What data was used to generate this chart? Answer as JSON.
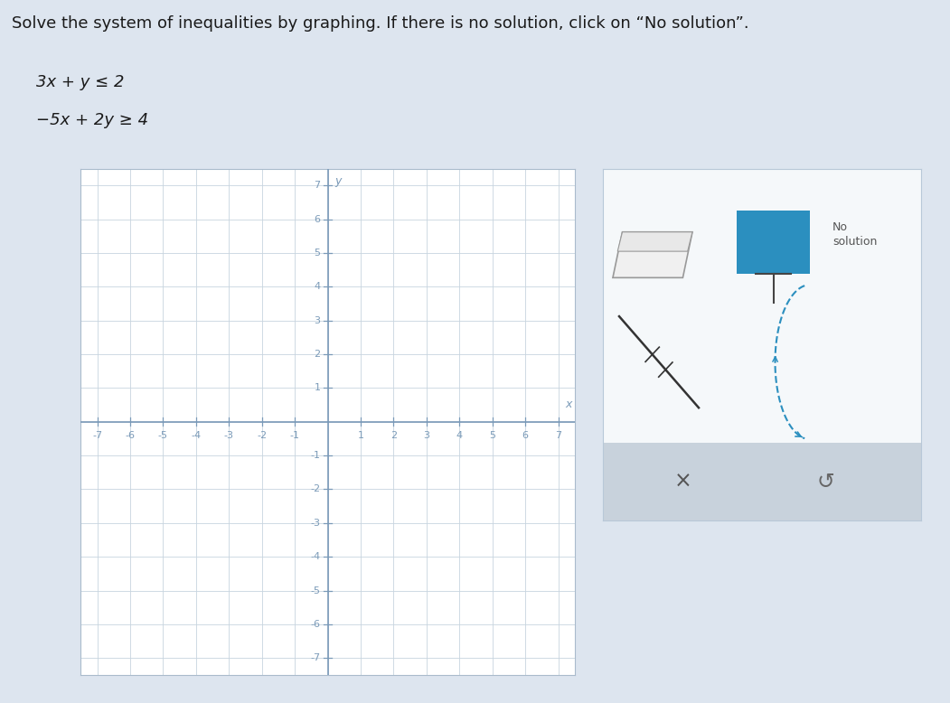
{
  "title_text": "Solve the system of inequalities by graphing. If there is no solution, click on “No solution”.",
  "ineq1": "3x + y ≤ 2",
  "ineq2": "−5x + 2y ≥ 4",
  "xlim": [
    -7.5,
    7.5
  ],
  "ylim": [
    -7.5,
    7.5
  ],
  "xticks": [
    -7,
    -6,
    -5,
    -4,
    -3,
    -2,
    -1,
    1,
    2,
    3,
    4,
    5,
    6,
    7
  ],
  "yticks": [
    -7,
    -6,
    -5,
    -4,
    -3,
    -2,
    -1,
    1,
    2,
    3,
    4,
    5,
    6,
    7
  ],
  "grid_color": "#c8d4df",
  "axis_color": "#7a9ab8",
  "tick_label_color": "#7a9ab8",
  "graph_bg": "#ffffff",
  "outer_bg": "#dde5ef",
  "panel_bg": "#f5f8fa",
  "no_solution_btn_color": "#c8d2dc",
  "teal_color": "#2b8fbf",
  "font_size_title": 13,
  "font_size_tick": 8,
  "font_size_ineq": 13
}
